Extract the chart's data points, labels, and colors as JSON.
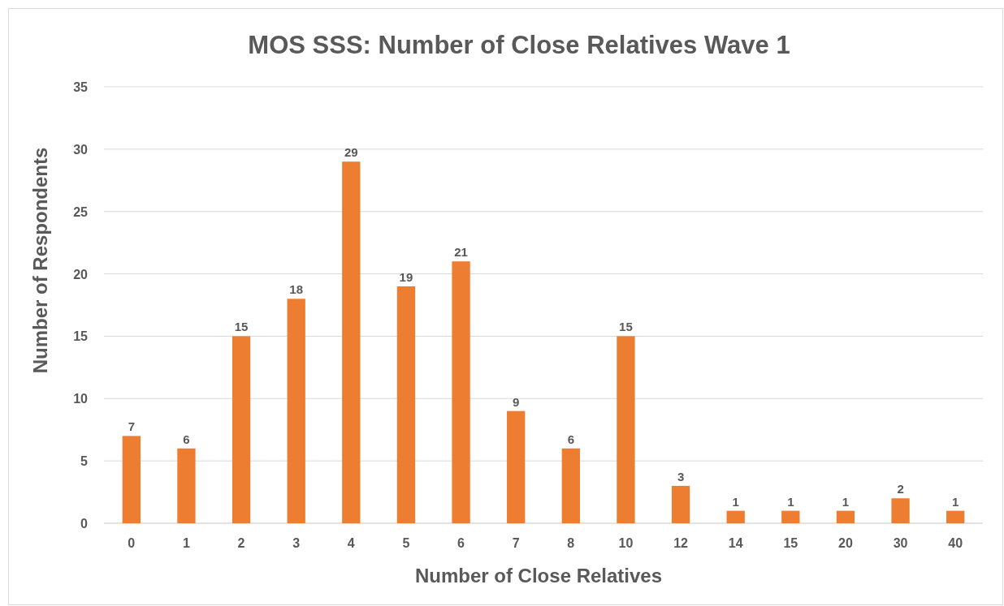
{
  "chart_data": {
    "type": "bar",
    "title": "MOS SSS: Number of Close Relatives Wave 1",
    "xlabel": "Number of Close Relatives",
    "ylabel": "Number of Respondents",
    "categories": [
      "0",
      "1",
      "2",
      "3",
      "4",
      "5",
      "6",
      "7",
      "8",
      "10",
      "12",
      "14",
      "15",
      "20",
      "30",
      "40"
    ],
    "values": [
      7,
      6,
      15,
      18,
      29,
      19,
      21,
      9,
      6,
      15,
      3,
      1,
      1,
      1,
      2,
      1
    ],
    "color": "#ed7d31",
    "ylim": [
      0,
      35
    ],
    "yticks": [
      0,
      5,
      10,
      15,
      20,
      25,
      30,
      35
    ],
    "grid": "y",
    "data_labels": true
  }
}
